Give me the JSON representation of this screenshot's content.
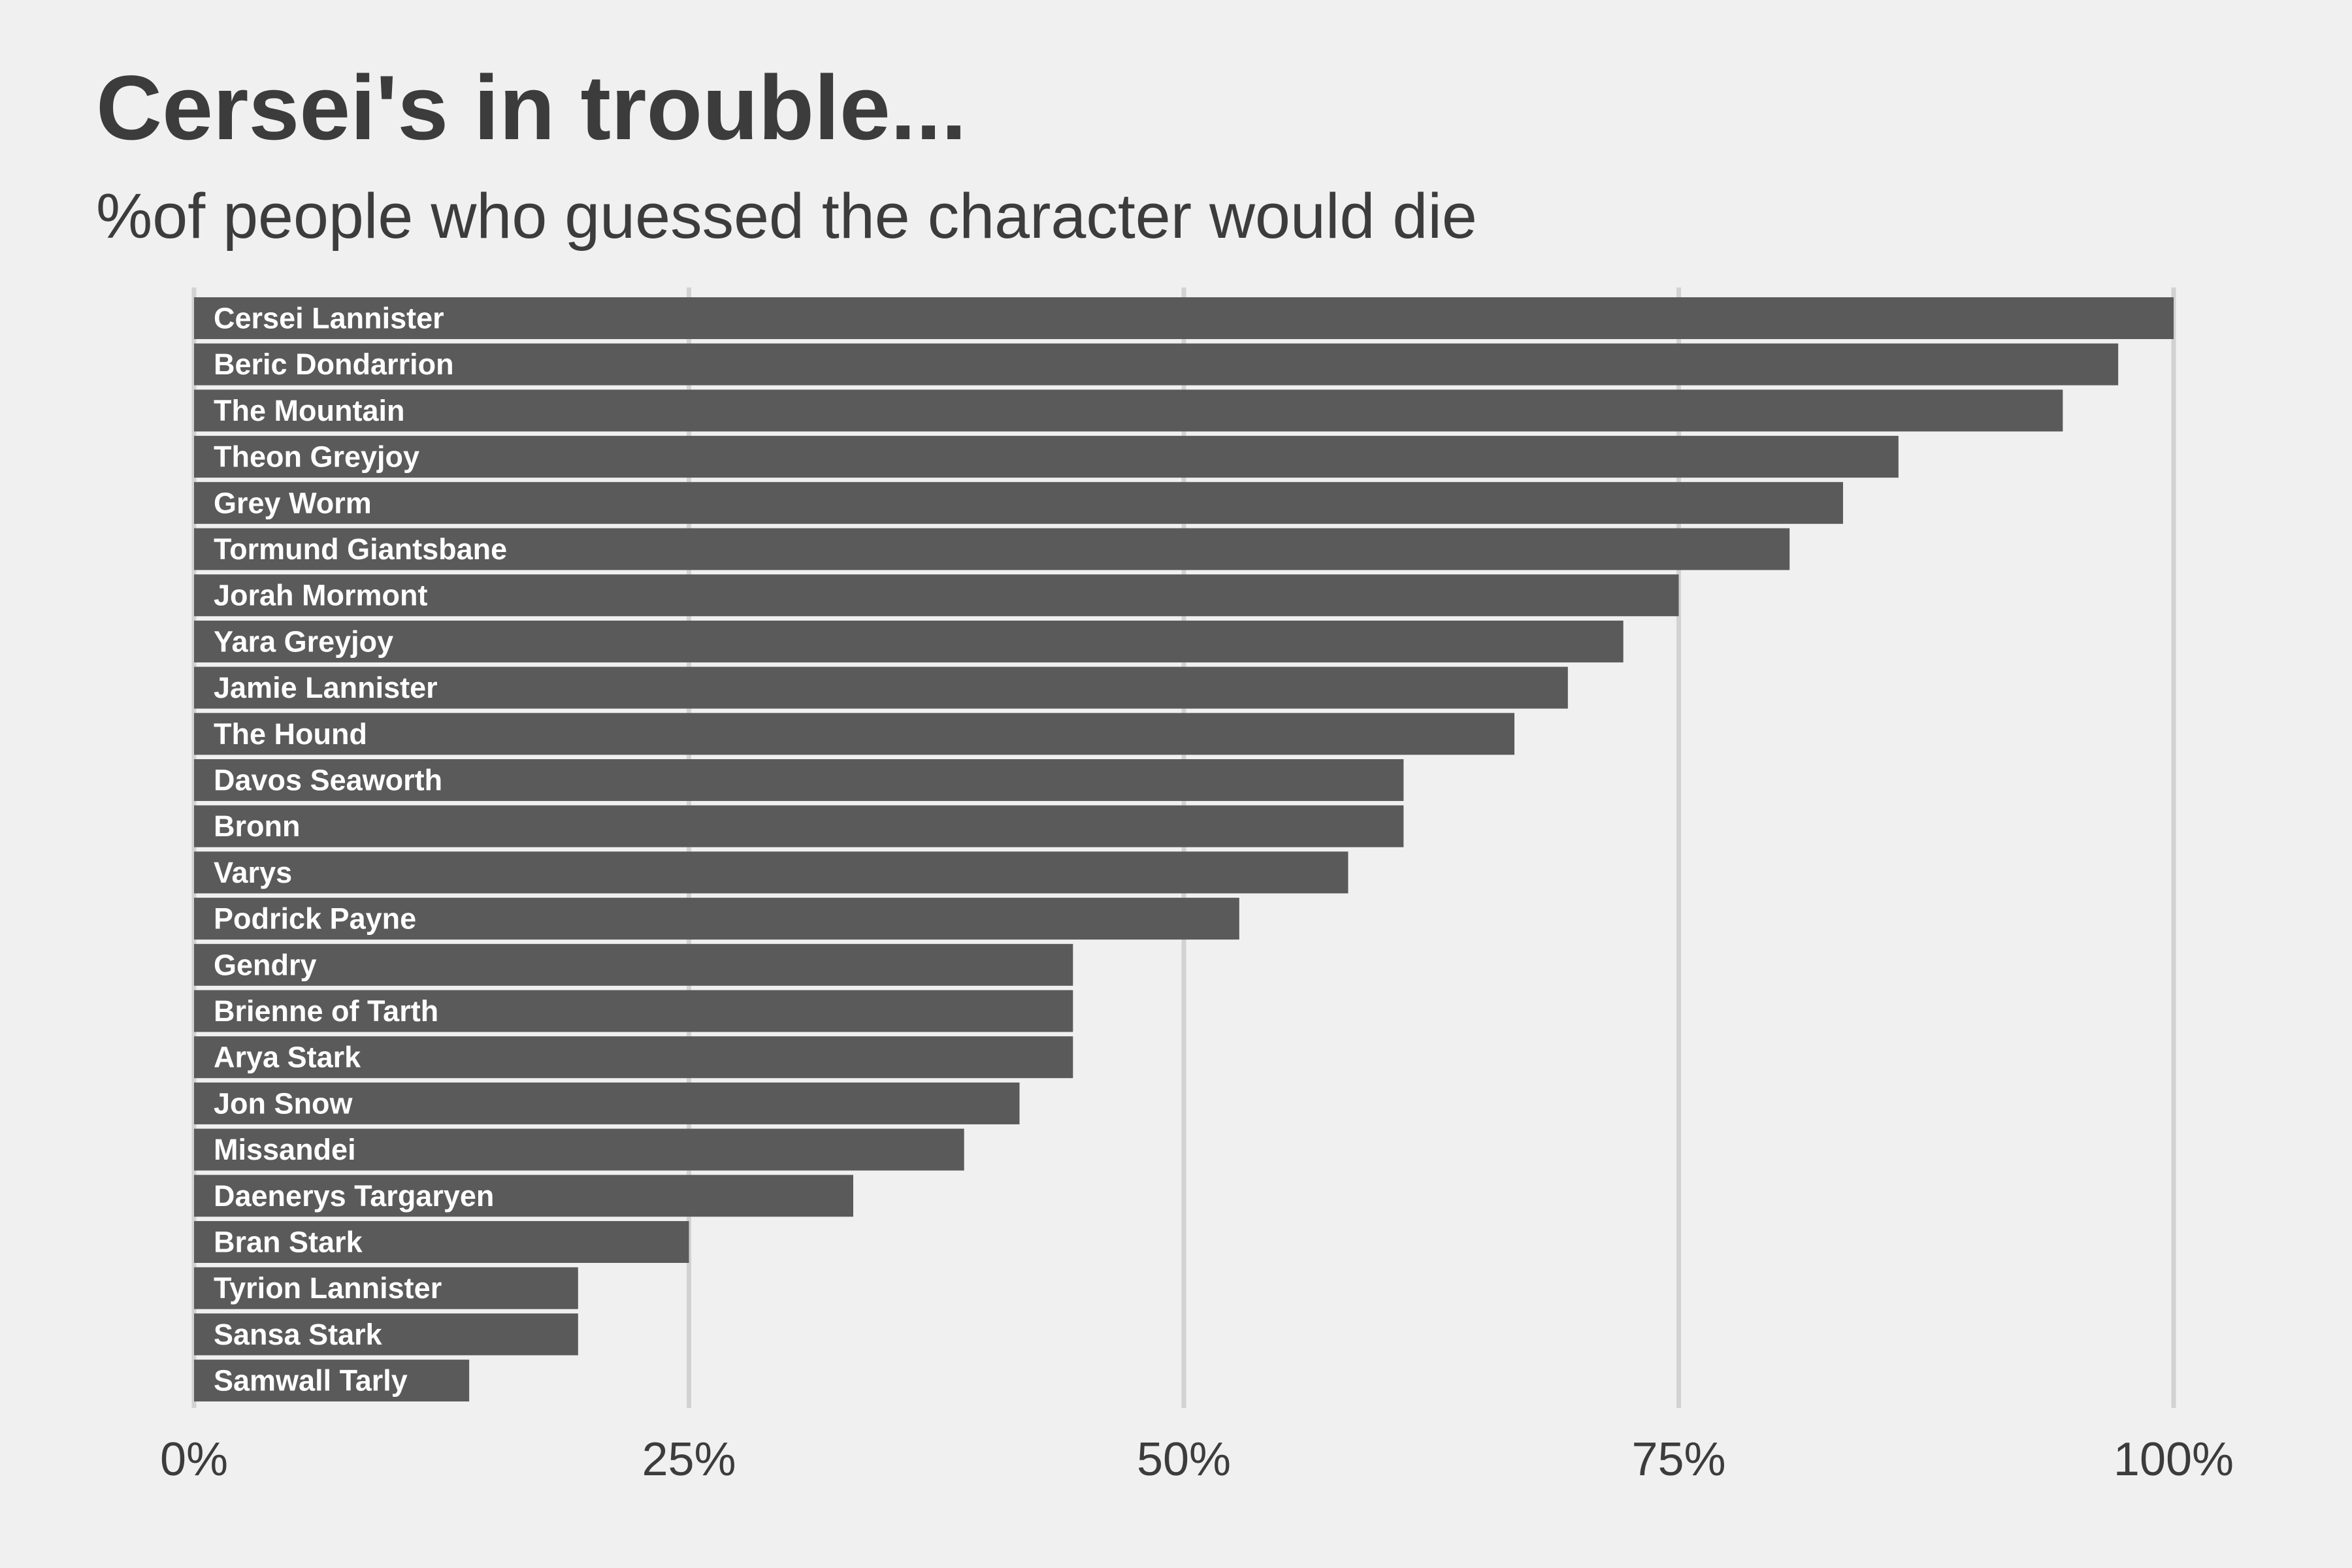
{
  "chart_data": {
    "type": "bar",
    "orientation": "horizontal",
    "title": "Cersei's in trouble...",
    "subtitle": "%of people who guessed the character would die",
    "xlabel": "",
    "ylabel": "",
    "xlim": [
      0,
      100
    ],
    "x_ticks": [
      0,
      25,
      50,
      75,
      100
    ],
    "x_tick_labels": [
      "0%",
      "25%",
      "50%",
      "75%",
      "100%"
    ],
    "grid": "vertical",
    "legend": "none",
    "bar_color": "#5a5a5a",
    "label_color": "#ffffff",
    "background": "#f0f0f0",
    "grid_color": "#d2d2d2",
    "categories": [
      "Cersei Lannister",
      "Beric Dondarrion",
      "The Mountain",
      "Theon Greyjoy",
      "Grey Worm",
      "Tormund Giantsbane",
      "Jorah Mormont",
      "Yara Greyjoy",
      "Jamie Lannister",
      "The Hound",
      "Davos Seaworth",
      "Bronn",
      "Varys",
      "Podrick Payne",
      "Gendry",
      "Brienne of Tarth",
      "Arya Stark",
      "Jon Snow",
      "Missandei",
      "Daenerys Targaryen",
      "Bran Stark",
      "Tyrion Lannister",
      "Sansa Stark",
      "Samwall Tarly"
    ],
    "values": [
      100,
      97.2,
      94.4,
      86.1,
      83.3,
      80.6,
      75.0,
      72.2,
      69.4,
      66.7,
      61.1,
      61.1,
      58.3,
      52.8,
      44.4,
      44.4,
      44.4,
      41.7,
      38.9,
      33.3,
      25.0,
      19.4,
      19.4,
      13.9
    ]
  }
}
